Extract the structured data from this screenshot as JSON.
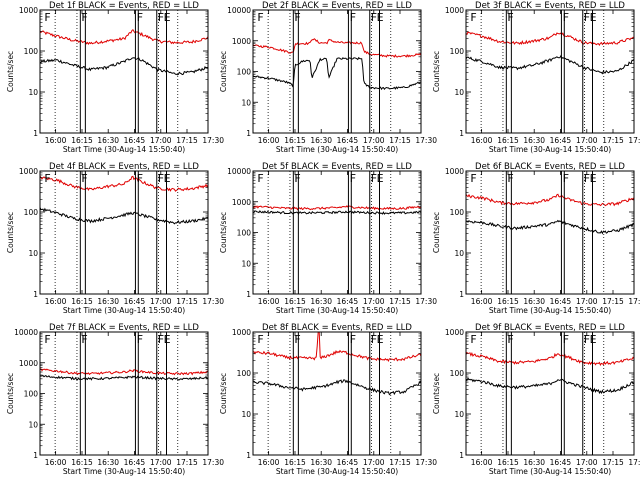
{
  "figure": {
    "panel_titles": [
      "Det 1f BLACK = Events, RED = LLD",
      "Det 2f BLACK = Events, RED = LLD",
      "Det 3f BLACK = Events, RED = LLD",
      "Det 4f BLACK = Events, RED = LLD",
      "Det 5f BLACK = Events, RED = LLD",
      "Det 6f BLACK = Events, RED = LLD",
      "Det 7f BLACK = Events, RED = LLD",
      "Det 8f BLACK = Events, RED = LLD",
      "Det 9f BLACK = Events, RED = LLD"
    ],
    "xlabel": "Start Time (30-Aug-14 15:50:40)",
    "ylabel": "Counts/sec",
    "colors": {
      "events": "#000000",
      "lld": "#e00000"
    }
  },
  "chart_data": [
    {
      "type": "line",
      "title": "Det 1f BLACK = Events, RED = LLD",
      "xlabel": "Start Time (30-Aug-14 15:50:40)",
      "ylabel": "Counts/sec",
      "yscale": "log",
      "ylim": [
        1,
        1000
      ],
      "yticks": [
        1,
        10,
        100,
        1000
      ],
      "ytick_labels": [
        "1",
        "10",
        "100",
        "1000"
      ],
      "xlim": [
        0,
        100
      ],
      "x_tick_values": [
        9.3,
        25,
        40.6,
        56.2,
        71.9,
        87.5,
        103.1
      ],
      "x_tick_labels": [
        "16:00",
        "16:15",
        "16:30",
        "16:45",
        "17:00",
        "17:15",
        "17:30"
      ],
      "dotted_lines_x": [
        9,
        22,
        70.5,
        82
      ],
      "solid_lines_x": [
        24,
        27,
        56.8,
        58.5,
        69.5,
        75.3
      ],
      "region_flags": [
        {
          "label": "F",
          "x": 2
        },
        {
          "label": "F",
          "x": 24
        },
        {
          "label": "F",
          "x": 57
        },
        {
          "label": "F",
          "x": 69.5
        },
        {
          "label": "E",
          "x": 73
        }
      ],
      "x": [
        0,
        10,
        20,
        30,
        40,
        50,
        55,
        60,
        70,
        80,
        90,
        100
      ],
      "series": [
        {
          "name": "LLD",
          "values": [
            300,
            230,
            180,
            155,
            175,
            200,
            310,
            260,
            175,
            160,
            165,
            210
          ]
        },
        {
          "name": "Events",
          "values": [
            55,
            60,
            45,
            35,
            40,
            55,
            70,
            62,
            35,
            28,
            30,
            40
          ]
        }
      ]
    },
    {
      "type": "line",
      "title": "Det 2f BLACK = Events, RED = LLD",
      "xlabel": "Start Time (30-Aug-14 15:50:40)",
      "ylabel": "Counts/sec",
      "yscale": "log",
      "ylim": [
        1,
        10000
      ],
      "yticks": [
        1,
        10,
        100,
        1000,
        10000
      ],
      "ytick_labels": [
        "1",
        "10",
        "100",
        "1000",
        "10000"
      ],
      "xlim": [
        0,
        100
      ],
      "x_tick_values": [
        9.3,
        25,
        40.6,
        56.2,
        71.9,
        87.5,
        103.1
      ],
      "x_tick_labels": [
        "16:00",
        "16:15",
        "16:30",
        "16:45",
        "17:00",
        "17:15",
        "17:30"
      ],
      "dotted_lines_x": [
        9,
        22,
        70.5,
        82
      ],
      "solid_lines_x": [
        24,
        27,
        56.8,
        58.5,
        69.5,
        75.3
      ],
      "region_flags": [
        {
          "label": "F",
          "x": 2
        },
        {
          "label": "F",
          "x": 24
        },
        {
          "label": "F",
          "x": 57
        },
        {
          "label": "F",
          "x": 69.5
        },
        {
          "label": "E",
          "x": 73
        }
      ],
      "x": [
        0,
        10,
        20,
        24,
        25,
        30,
        34,
        35,
        40,
        44,
        45,
        50,
        55,
        60,
        65,
        66,
        70,
        80,
        90,
        100
      ],
      "series": [
        {
          "name": "LLD",
          "values": [
            700,
            620,
            450,
            400,
            800,
            820,
            820,
            1200,
            850,
            850,
            1050,
            900,
            850,
            850,
            850,
            450,
            360,
            320,
            320,
            360
          ]
        },
        {
          "name": "Events",
          "values": [
            70,
            60,
            45,
            35,
            160,
            220,
            230,
            60,
            250,
            250,
            60,
            260,
            260,
            260,
            260,
            40,
            30,
            28,
            30,
            45
          ]
        }
      ]
    },
    {
      "type": "line",
      "title": "Det 3f BLACK = Events, RED = LLD",
      "xlabel": "Start Time (30-Aug-14 15:50:40)",
      "ylabel": "Counts/sec",
      "yscale": "log",
      "ylim": [
        1,
        1000
      ],
      "yticks": [
        1,
        10,
        100,
        1000
      ],
      "ytick_labels": [
        "1",
        "10",
        "100",
        "1000"
      ],
      "xlim": [
        0,
        100
      ],
      "x_tick_values": [
        9.3,
        25,
        40.6,
        56.2,
        71.9,
        87.5,
        103.1
      ],
      "x_tick_labels": [
        "16:00",
        "16:15",
        "16:30",
        "16:45",
        "17:00",
        "17:15",
        "17:30"
      ],
      "dotted_lines_x": [
        9,
        22,
        70.5,
        82
      ],
      "solid_lines_x": [
        24,
        27,
        56.8,
        58.5,
        69.5,
        75.3
      ],
      "region_flags": [
        {
          "label": "F",
          "x": 2
        },
        {
          "label": "F",
          "x": 24
        },
        {
          "label": "F",
          "x": 57
        },
        {
          "label": "F",
          "x": 69.5
        },
        {
          "label": "E",
          "x": 73
        }
      ],
      "x": [
        0,
        10,
        20,
        30,
        40,
        50,
        55,
        60,
        70,
        80,
        90,
        100
      ],
      "series": [
        {
          "name": "LLD",
          "values": [
            280,
            230,
            170,
            155,
            175,
            210,
            290,
            240,
            160,
            150,
            160,
            210
          ]
        },
        {
          "name": "Events",
          "values": [
            70,
            55,
            40,
            38,
            45,
            60,
            75,
            62,
            40,
            30,
            32,
            60
          ]
        }
      ]
    },
    {
      "type": "line",
      "title": "Det 4f BLACK = Events, RED = LLD",
      "xlabel": "Start Time (30-Aug-14 15:50:40)",
      "ylabel": "Counts/sec",
      "yscale": "log",
      "ylim": [
        1,
        1000
      ],
      "yticks": [
        1,
        10,
        100,
        1000
      ],
      "ytick_labels": [
        "1",
        "10",
        "100",
        "1000"
      ],
      "xlim": [
        0,
        100
      ],
      "x_tick_values": [
        9.3,
        25,
        40.6,
        56.2,
        71.9,
        87.5,
        103.1
      ],
      "x_tick_labels": [
        "16:00",
        "16:15",
        "16:30",
        "16:45",
        "17:00",
        "17:15",
        "17:30"
      ],
      "dotted_lines_x": [
        9,
        22,
        70.5,
        82
      ],
      "solid_lines_x": [
        24,
        27,
        56.8,
        58.5,
        69.5,
        75.3
      ],
      "region_flags": [
        {
          "label": "F",
          "x": 2
        },
        {
          "label": "F",
          "x": 24
        },
        {
          "label": "F",
          "x": 57
        },
        {
          "label": "F",
          "x": 69.5
        },
        {
          "label": "E",
          "x": 73
        }
      ],
      "x": [
        0,
        10,
        20,
        30,
        40,
        50,
        55,
        60,
        70,
        80,
        90,
        100
      ],
      "series": [
        {
          "name": "LLD",
          "values": [
            700,
            600,
            420,
            350,
            420,
            480,
            700,
            560,
            380,
            350,
            370,
            450
          ]
        },
        {
          "name": "Events",
          "values": [
            120,
            95,
            70,
            60,
            70,
            85,
            95,
            85,
            65,
            55,
            60,
            70
          ]
        }
      ]
    },
    {
      "type": "line",
      "title": "Det 5f BLACK = Events, RED = LLD",
      "xlabel": "Start Time (30-Aug-14 15:50:40)",
      "ylabel": "Counts/sec",
      "yscale": "log",
      "ylim": [
        1,
        10000
      ],
      "yticks": [
        1,
        10,
        100,
        1000,
        10000
      ],
      "ytick_labels": [
        "1",
        "10",
        "100",
        "1000",
        "10000"
      ],
      "xlim": [
        0,
        100
      ],
      "x_tick_values": [
        9.3,
        25,
        40.6,
        56.2,
        71.9,
        87.5,
        103.1
      ],
      "x_tick_labels": [
        "16:00",
        "16:15",
        "16:30",
        "16:45",
        "17:00",
        "17:15",
        "17:30"
      ],
      "dotted_lines_x": [
        9,
        22,
        70.5,
        82
      ],
      "solid_lines_x": [
        24,
        27,
        56.8,
        58.5,
        69.5,
        75.3
      ],
      "region_flags": [
        {
          "label": "F",
          "x": 2
        },
        {
          "label": "F",
          "x": 24
        },
        {
          "label": "F",
          "x": 57
        },
        {
          "label": "F",
          "x": 69.5
        },
        {
          "label": "E",
          "x": 73
        }
      ],
      "x": [
        0,
        10,
        20,
        30,
        40,
        50,
        55,
        60,
        70,
        80,
        90,
        100
      ],
      "series": [
        {
          "name": "LLD",
          "values": [
            700,
            660,
            610,
            600,
            610,
            640,
            700,
            670,
            620,
            600,
            610,
            700
          ]
        },
        {
          "name": "Events",
          "values": [
            480,
            460,
            440,
            430,
            440,
            455,
            470,
            460,
            440,
            430,
            435,
            460
          ]
        }
      ]
    },
    {
      "type": "line",
      "title": "Det 6f BLACK = Events, RED = LLD",
      "xlabel": "Start Time (30-Aug-14 15:50:40)",
      "ylabel": "Counts/sec",
      "yscale": "log",
      "ylim": [
        1,
        1000
      ],
      "yticks": [
        1,
        10,
        100,
        1000
      ],
      "ytick_labels": [
        "1",
        "10",
        "100",
        "1000"
      ],
      "xlim": [
        0,
        100
      ],
      "x_tick_values": [
        9.3,
        25,
        40.6,
        56.2,
        71.9,
        87.5,
        103.1
      ],
      "x_tick_labels": [
        "16:00",
        "16:15",
        "16:30",
        "16:45",
        "17:00",
        "17:15",
        "17:30"
      ],
      "dotted_lines_x": [
        9,
        22,
        70.5,
        82
      ],
      "solid_lines_x": [
        24,
        27,
        56.8,
        58.5,
        69.5,
        75.3
      ],
      "region_flags": [
        {
          "label": "F",
          "x": 2
        },
        {
          "label": "F",
          "x": 24
        },
        {
          "label": "F",
          "x": 57
        },
        {
          "label": "F",
          "x": 69.5
        },
        {
          "label": "E",
          "x": 73
        }
      ],
      "x": [
        0,
        10,
        20,
        30,
        40,
        50,
        55,
        60,
        70,
        80,
        90,
        100
      ],
      "series": [
        {
          "name": "LLD",
          "values": [
            250,
            220,
            170,
            160,
            170,
            200,
            260,
            210,
            160,
            150,
            160,
            220
          ]
        },
        {
          "name": "Events",
          "values": [
            60,
            55,
            45,
            40,
            45,
            50,
            60,
            52,
            40,
            32,
            35,
            50
          ]
        }
      ]
    },
    {
      "type": "line",
      "title": "Det 7f BLACK = Events, RED = LLD",
      "xlabel": "Start Time (30-Aug-14 15:50:40)",
      "ylabel": "Counts/sec",
      "yscale": "log",
      "ylim": [
        1,
        10000
      ],
      "yticks": [
        1,
        10,
        100,
        1000,
        10000
      ],
      "ytick_labels": [
        "1",
        "10",
        "100",
        "1000",
        "10000"
      ],
      "xlim": [
        0,
        100
      ],
      "x_tick_values": [
        9.3,
        25,
        40.6,
        56.2,
        71.9,
        87.5,
        103.1
      ],
      "x_tick_labels": [
        "16:00",
        "16:15",
        "16:30",
        "16:45",
        "17:00",
        "17:15",
        "17:30"
      ],
      "dotted_lines_x": [
        9,
        22,
        70.5,
        82
      ],
      "solid_lines_x": [
        24,
        27,
        56.8,
        58.5,
        69.5,
        75.3
      ],
      "region_flags": [
        {
          "label": "F",
          "x": 2
        },
        {
          "label": "F",
          "x": 24
        },
        {
          "label": "F",
          "x": 57
        },
        {
          "label": "F",
          "x": 69.5
        },
        {
          "label": "E",
          "x": 73
        }
      ],
      "x": [
        0,
        10,
        20,
        30,
        40,
        50,
        55,
        60,
        70,
        80,
        90,
        100
      ],
      "series": [
        {
          "name": "LLD",
          "values": [
            600,
            540,
            460,
            440,
            470,
            500,
            560,
            520,
            460,
            440,
            450,
            500
          ]
        },
        {
          "name": "Events",
          "values": [
            370,
            340,
            310,
            300,
            310,
            330,
            350,
            335,
            310,
            295,
            300,
            330
          ]
        }
      ]
    },
    {
      "type": "line",
      "title": "Det 8f BLACK = Events, RED = LLD",
      "xlabel": "Start Time (30-Aug-14 15:50:40)",
      "ylabel": "Counts/sec",
      "yscale": "log",
      "ylim": [
        1,
        1000
      ],
      "yticks": [
        1,
        10,
        100,
        1000
      ],
      "ytick_labels": [
        "1",
        "10",
        "100",
        "1000"
      ],
      "xlim": [
        0,
        100
      ],
      "x_tick_values": [
        9.3,
        25,
        40.6,
        56.2,
        71.9,
        87.5,
        103.1
      ],
      "x_tick_labels": [
        "16:00",
        "16:15",
        "16:30",
        "16:45",
        "17:00",
        "17:15",
        "17:30"
      ],
      "dotted_lines_x": [
        9,
        22,
        70.5,
        82
      ],
      "solid_lines_x": [
        24,
        27,
        56.8,
        58.5,
        69.5,
        75.3
      ],
      "region_flags": [
        {
          "label": "F",
          "x": 2
        },
        {
          "label": "F",
          "x": 24
        },
        {
          "label": "F",
          "x": 57
        },
        {
          "label": "F",
          "x": 69.5
        },
        {
          "label": "E",
          "x": 73
        }
      ],
      "x": [
        0,
        10,
        20,
        30,
        38,
        38.5,
        39.5,
        40,
        48,
        50,
        55,
        60,
        70,
        80,
        90,
        100
      ],
      "series": [
        {
          "name": "LLD",
          "values": [
            320,
            300,
            240,
            230,
            230,
            1000,
            1000,
            230,
            300,
            330,
            320,
            280,
            220,
            210,
            220,
            280
          ]
        },
        {
          "name": "Events",
          "values": [
            60,
            55,
            45,
            40,
            45,
            45,
            45,
            45,
            55,
            60,
            65,
            55,
            40,
            32,
            35,
            60
          ]
        }
      ]
    },
    {
      "type": "line",
      "title": "Det 9f BLACK = Events, RED = LLD",
      "xlabel": "Start Time (30-Aug-14 15:50:40)",
      "ylabel": "Counts/sec",
      "yscale": "log",
      "ylim": [
        1,
        1000
      ],
      "yticks": [
        1,
        10,
        100,
        1000
      ],
      "ytick_labels": [
        "1",
        "10",
        "100",
        "1000"
      ],
      "xlim": [
        0,
        100
      ],
      "x_tick_values": [
        9.3,
        25,
        40.6,
        56.2,
        71.9,
        87.5,
        103.1
      ],
      "x_tick_labels": [
        "16:00",
        "16:15",
        "16:30",
        "16:45",
        "17:00",
        "17:15",
        "17:30"
      ],
      "dotted_lines_x": [
        9,
        22,
        70.5,
        82
      ],
      "solid_lines_x": [
        24,
        27,
        56.8,
        58.5,
        69.5,
        75.3
      ],
      "region_flags": [
        {
          "label": "F",
          "x": 2
        },
        {
          "label": "F",
          "x": 24
        },
        {
          "label": "F",
          "x": 57
        },
        {
          "label": "F",
          "x": 69.5
        },
        {
          "label": "E",
          "x": 73
        }
      ],
      "x": [
        0,
        10,
        20,
        30,
        40,
        50,
        55,
        60,
        70,
        80,
        90,
        100
      ],
      "series": [
        {
          "name": "LLD",
          "values": [
            300,
            250,
            190,
            180,
            190,
            230,
            300,
            250,
            180,
            170,
            180,
            230
          ]
        },
        {
          "name": "Events",
          "values": [
            70,
            62,
            48,
            45,
            48,
            55,
            70,
            60,
            45,
            35,
            38,
            60
          ]
        }
      ]
    }
  ]
}
